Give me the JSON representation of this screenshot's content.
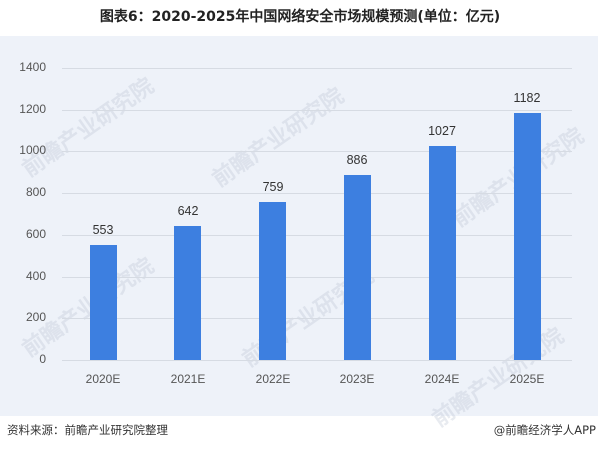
{
  "title": "图表6：2020-2025年中国网络安全市场规模预测(单位：亿元)",
  "footer": {
    "source": "资料来源：前瞻产业研究院整理",
    "credit": "@前瞻经济学人APP"
  },
  "watermark": "前瞻产业研究院",
  "colors": {
    "bar": "#3d7fe0",
    "panel_bg": "#eef2f9",
    "grid": "#d6dbe3"
  },
  "chart_data": {
    "type": "bar",
    "title": "图表6：2020-2025年中国网络安全市场规模预测(单位：亿元)",
    "xlabel": "",
    "ylabel": "",
    "categories": [
      "2020E",
      "2021E",
      "2022E",
      "2023E",
      "2024E",
      "2025E"
    ],
    "values": [
      553,
      642,
      759,
      886,
      1027,
      1182
    ],
    "unit": "亿元",
    "ylim": [
      0,
      1400
    ],
    "yticks": [
      "0",
      "200",
      "400",
      "600",
      "800",
      "1000",
      "1200",
      "1400"
    ],
    "grid": true,
    "legend": null,
    "data_labels": [
      "553",
      "642",
      "759",
      "886",
      "1027",
      "1182"
    ]
  }
}
